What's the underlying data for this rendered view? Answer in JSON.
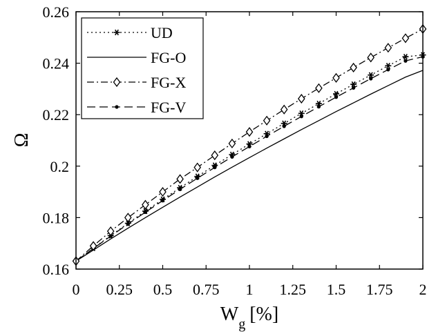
{
  "chart_data": {
    "type": "line",
    "title": "",
    "xlabel": "W",
    "xlabel_subscript": "g",
    "xlabel_unit": "[%]",
    "ylabel": "Ω",
    "xlim": [
      0,
      2
    ],
    "ylim": [
      0.16,
      0.26
    ],
    "xticks": [
      0,
      0.25,
      0.5,
      0.75,
      1,
      1.25,
      1.5,
      1.75,
      2
    ],
    "xtick_labels": [
      "0",
      "0.25",
      "0.5",
      "0.75",
      "1",
      "1.25",
      "1.5",
      "1.75",
      "2"
    ],
    "yticks": [
      0.16,
      0.18,
      0.2,
      0.22,
      0.24,
      0.26
    ],
    "ytick_labels": [
      "0.16",
      "0.18",
      "0.2",
      "0.22",
      "0.24",
      "0.26"
    ],
    "grid": false,
    "legend_position": "top-left",
    "x": [
      0,
      0.1,
      0.2,
      0.3,
      0.4,
      0.5,
      0.6,
      0.7,
      0.8,
      0.9,
      1.0,
      1.1,
      1.2,
      1.3,
      1.4,
      1.5,
      1.6,
      1.7,
      1.8,
      1.9,
      2.0
    ],
    "series": [
      {
        "name": "UD",
        "line_style": "dotted",
        "marker": "asterisk",
        "values": [
          0.1631,
          0.1681,
          0.173,
          0.1778,
          0.1825,
          0.1871,
          0.1916,
          0.196,
          0.2003,
          0.2045,
          0.2086,
          0.2126,
          0.2166,
          0.2205,
          0.2243,
          0.2281,
          0.2318,
          0.2354,
          0.239,
          0.2425,
          0.2432
        ]
      },
      {
        "name": "FG-O",
        "line_style": "solid",
        "marker": "none",
        "values": [
          0.1631,
          0.1674,
          0.1717,
          0.1759,
          0.18,
          0.184,
          0.188,
          0.1919,
          0.1958,
          0.1996,
          0.2033,
          0.207,
          0.2106,
          0.2142,
          0.2177,
          0.2212,
          0.2246,
          0.228,
          0.2313,
          0.2346,
          0.2372
        ]
      },
      {
        "name": "FG-X",
        "line_style": "dashdot",
        "marker": "diamond",
        "values": [
          0.1631,
          0.169,
          0.1747,
          0.18,
          0.185,
          0.19,
          0.195,
          0.1995,
          0.2042,
          0.2088,
          0.2133,
          0.2177,
          0.222,
          0.2262,
          0.2303,
          0.2343,
          0.2383,
          0.2422,
          0.246,
          0.2497,
          0.2533
        ]
      },
      {
        "name": "FG-V",
        "line_style": "dashed",
        "marker": "dot",
        "values": [
          0.1631,
          0.168,
          0.1728,
          0.1775,
          0.1821,
          0.1866,
          0.191,
          0.1953,
          0.1995,
          0.2036,
          0.2076,
          0.2116,
          0.2155,
          0.2193,
          0.2231,
          0.2268,
          0.2304,
          0.234,
          0.2375,
          0.2409,
          0.2425
        ]
      }
    ]
  }
}
